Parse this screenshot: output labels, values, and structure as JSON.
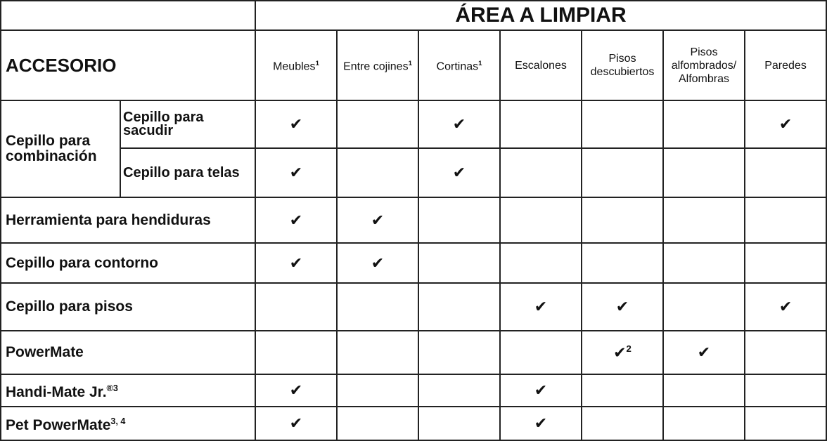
{
  "header": {
    "title": "ÁREA A LIMPIAR",
    "accessory": "ACCESORIO",
    "columns": [
      {
        "label": "Meubles",
        "note": "1"
      },
      {
        "label": "Entre cojines",
        "note": "1"
      },
      {
        "label": "Cortinas",
        "note": "1"
      },
      {
        "label": "Escalones"
      },
      {
        "label": "Pisos descubiertos"
      },
      {
        "label": "Pisos alfombrados/ Alfombras"
      },
      {
        "label": "Paredes"
      }
    ]
  },
  "table": {
    "group": "Cepillo para combinación",
    "rows": [
      {
        "name": "Cepillo para sacudir",
        "cells": [
          "✔",
          null,
          "✔",
          null,
          null,
          null,
          "✔"
        ]
      },
      {
        "name": "Cepillo para telas",
        "cells": [
          "✔",
          null,
          "✔",
          null,
          null,
          null,
          null
        ]
      },
      {
        "name": "Herramienta para hendiduras",
        "cells": [
          "✔",
          "✔",
          null,
          null,
          null,
          null,
          null
        ]
      },
      {
        "name": "Cepillo para contorno",
        "cells": [
          "✔",
          "✔",
          null,
          null,
          null,
          null,
          null
        ]
      },
      {
        "name": "Cepillo para pisos",
        "cells": [
          null,
          null,
          null,
          "✔",
          "✔",
          null,
          "✔"
        ]
      },
      {
        "name": "PowerMate",
        "cells": [
          null,
          null,
          null,
          null,
          {
            "text": "✔",
            "note": "2"
          },
          "✔",
          null
        ]
      },
      {
        "name": "Handi-Mate Jr.",
        "note": "®3",
        "cells": [
          "✔",
          null,
          null,
          "✔",
          null,
          null,
          null
        ]
      },
      {
        "name": "Pet PowerMate",
        "note": "3, 4",
        "cells": [
          "✔",
          null,
          null,
          "✔",
          null,
          null,
          null
        ]
      }
    ]
  }
}
